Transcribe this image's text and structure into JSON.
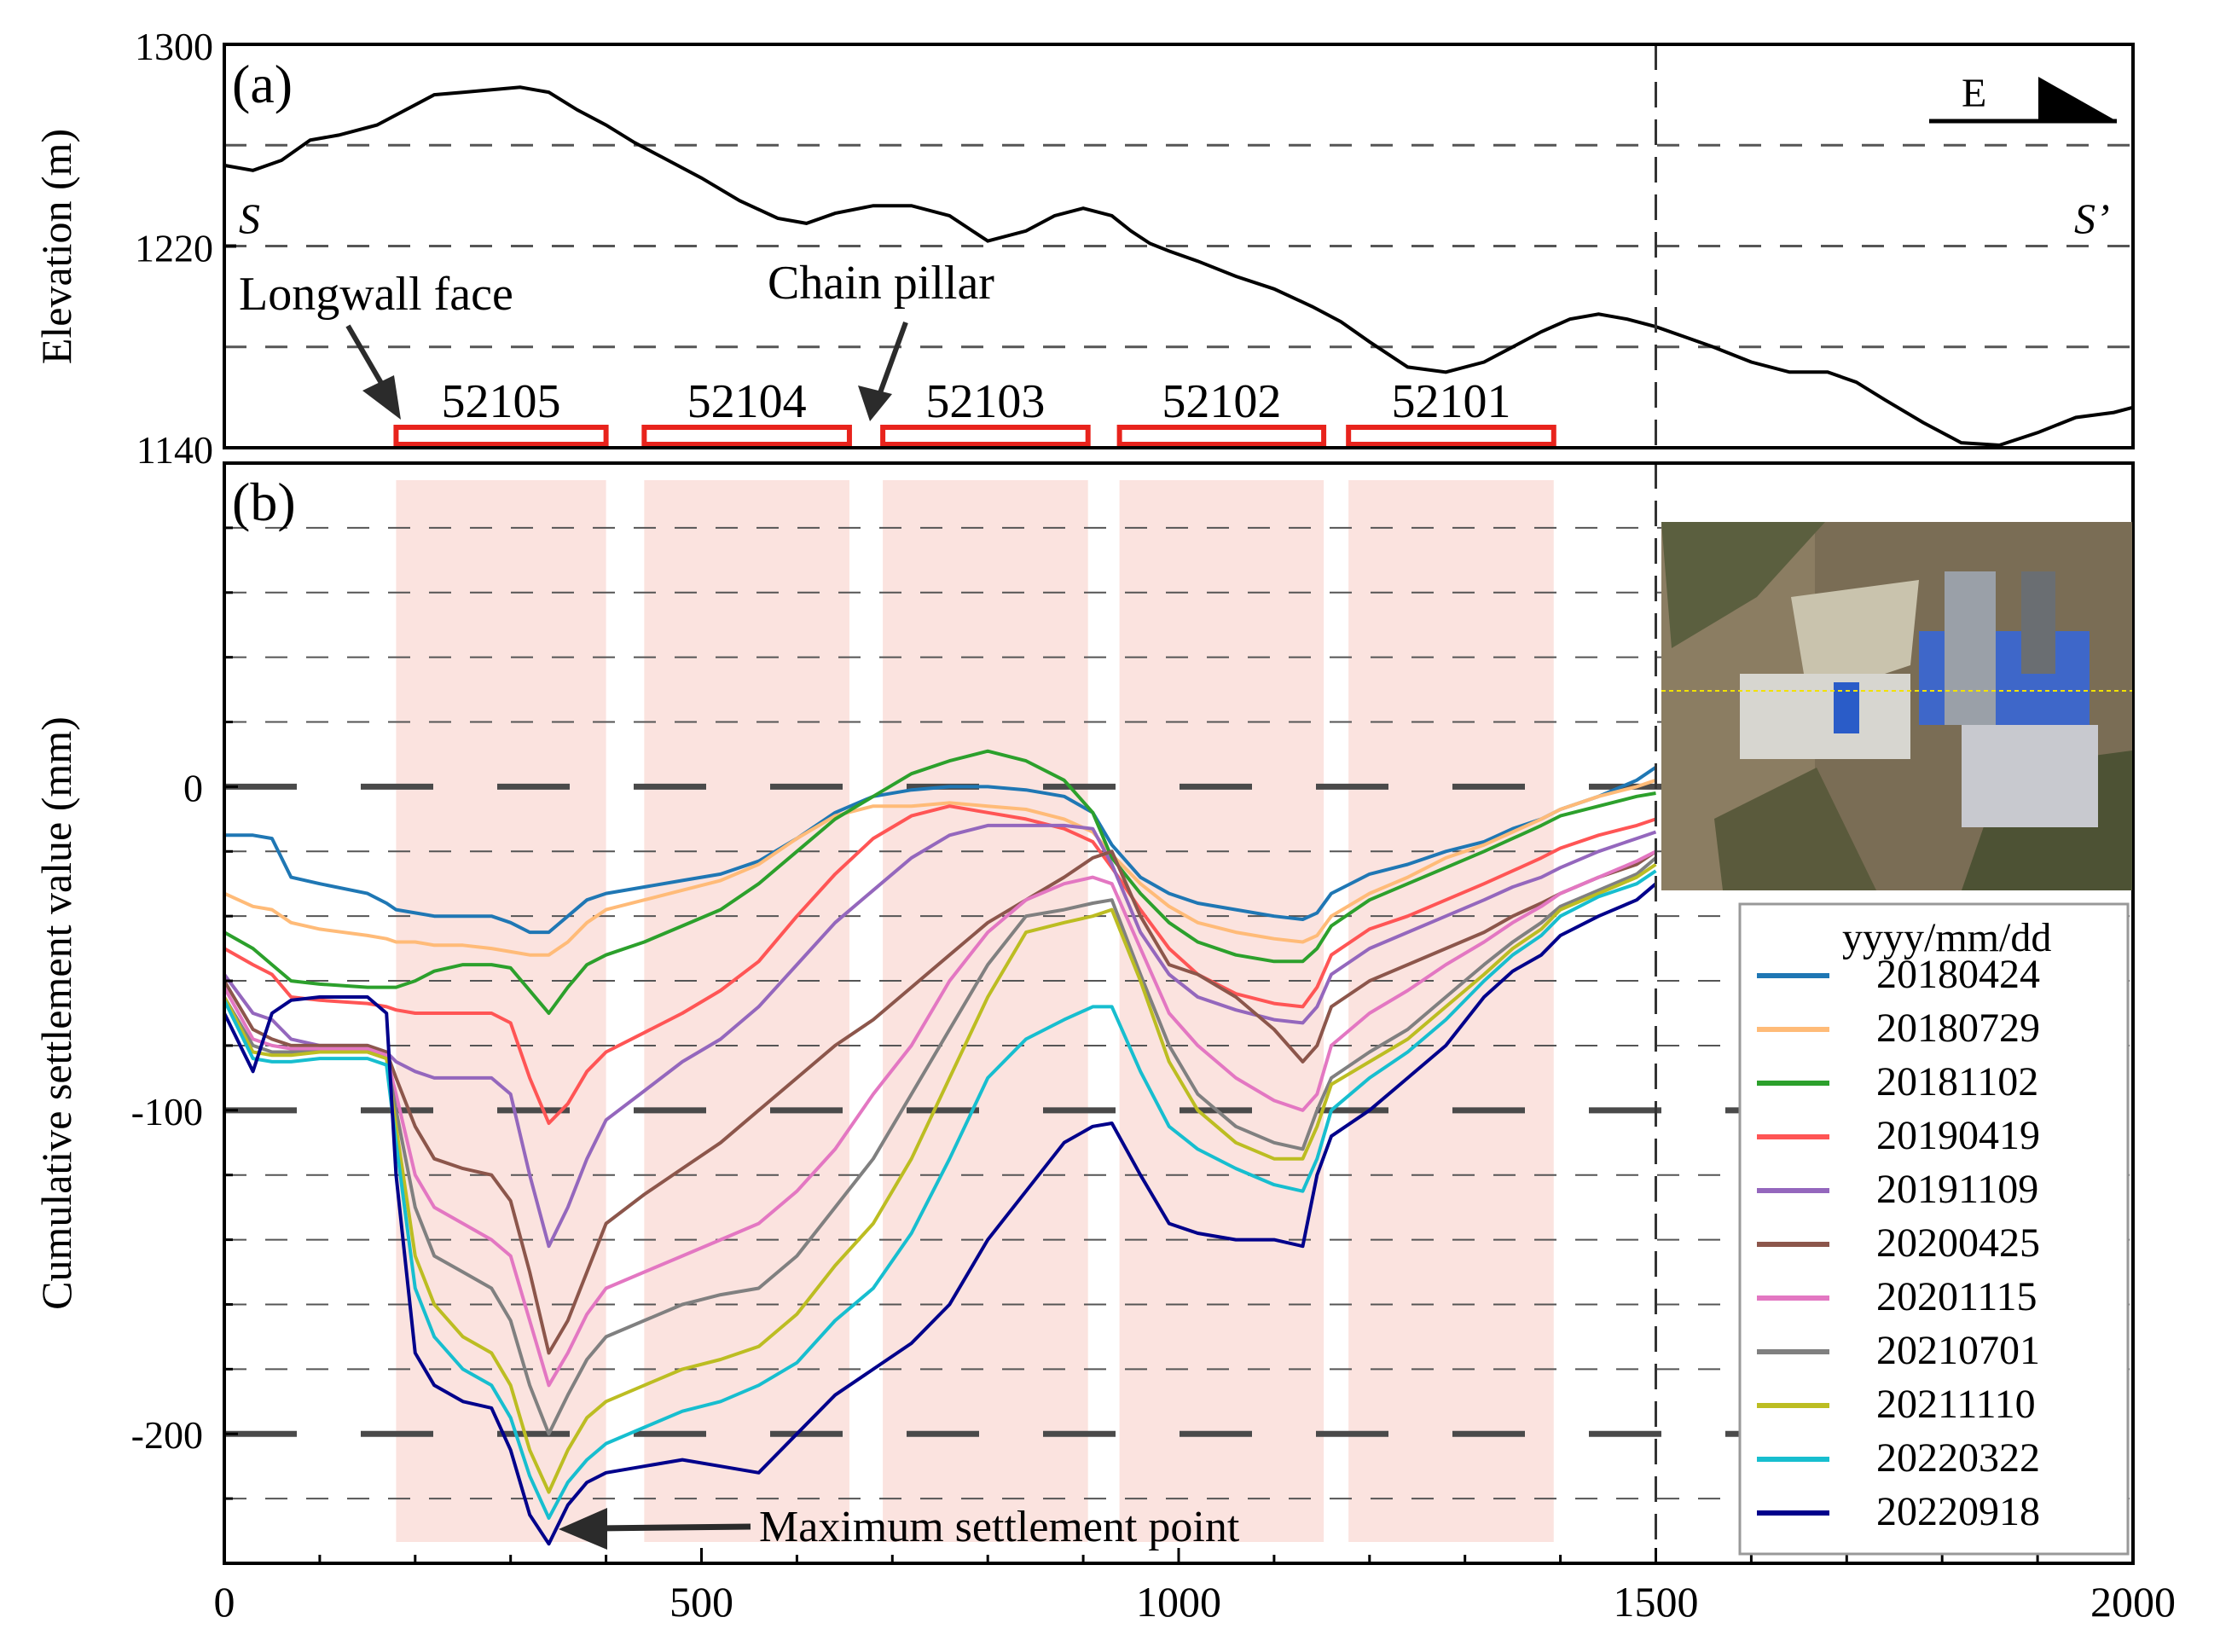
{
  "colors": {
    "frame": "#000000",
    "grid_minor": "#555555",
    "grid_major": "#4a4a4a",
    "panel_fill": "#fbe3df",
    "panel_rect": "#e8231c",
    "elevation_line": "#000000",
    "arrow": "#2b2b2b"
  },
  "inset_icon": "satellite-image-icon",
  "chart_data": [
    {
      "id": "a",
      "type": "line",
      "panel_label": "(a)",
      "ylabel": "Elevation (m)",
      "ylim": [
        1140,
        1300
      ],
      "yticks": [
        1140,
        1220,
        1300
      ],
      "xlim": [
        0,
        2000
      ],
      "grid_y": [
        1180,
        1220,
        1260
      ],
      "profile_start_label": "S",
      "profile_end_label": "S’",
      "direction_label": "E",
      "divider_x": 1500,
      "series": [
        {
          "name": "elevation",
          "x": [
            0,
            30,
            60,
            90,
            120,
            160,
            190,
            220,
            250,
            280,
            310,
            340,
            370,
            400,
            430,
            460,
            500,
            540,
            580,
            610,
            640,
            680,
            720,
            760,
            800,
            840,
            870,
            900,
            930,
            950,
            970,
            990,
            1020,
            1060,
            1100,
            1140,
            1170,
            1200,
            1240,
            1280,
            1320,
            1350,
            1380,
            1410,
            1440,
            1470,
            1500,
            1530,
            1560,
            1600,
            1640,
            1680,
            1710,
            1740,
            1780,
            1820,
            1860,
            1900,
            1940,
            1980,
            2000
          ],
          "y": [
            1252,
            1250,
            1254,
            1262,
            1264,
            1268,
            1274,
            1280,
            1281,
            1282,
            1283,
            1281,
            1274,
            1268,
            1261,
            1255,
            1247,
            1238,
            1231,
            1229,
            1233,
            1236,
            1236,
            1232,
            1222,
            1226,
            1232,
            1235,
            1232,
            1226,
            1221,
            1218,
            1214,
            1208,
            1203,
            1196,
            1190,
            1182,
            1172,
            1170,
            1174,
            1180,
            1186,
            1191,
            1193,
            1191,
            1188,
            1184,
            1180,
            1174,
            1170,
            1170,
            1166,
            1159,
            1150,
            1142,
            1141,
            1146,
            1152,
            1154,
            1156
          ]
        }
      ],
      "annotations": [
        {
          "text": "Longwall face"
        },
        {
          "text": "Chain pillar"
        }
      ],
      "panels": [
        {
          "label": "52105",
          "x_start": 180,
          "x_end": 400
        },
        {
          "label": "52104",
          "x_start": 440,
          "x_end": 655
        },
        {
          "label": "52103",
          "x_start": 690,
          "x_end": 905
        },
        {
          "label": "52102",
          "x_start": 938,
          "x_end": 1152
        },
        {
          "label": "52101",
          "x_start": 1178,
          "x_end": 1393
        }
      ]
    },
    {
      "id": "b",
      "type": "line",
      "panel_label": "(b)",
      "xlabel": "",
      "ylabel": "Cumulative settlement value  (mm)",
      "ylim": [
        -240,
        100
      ],
      "yticks": [
        -200,
        -100,
        0
      ],
      "xlim": [
        0,
        2000
      ],
      "xticks": [
        0,
        500,
        1000,
        1500,
        2000
      ],
      "minor_grid_step": 20,
      "major_grid": [
        -200,
        -100,
        0
      ],
      "legend_title": "yyyy/mm/dd",
      "legend_position": "bottom-right",
      "annotation": "Maximum settlement point",
      "x": [
        0,
        30,
        50,
        70,
        100,
        150,
        170,
        180,
        200,
        220,
        250,
        280,
        300,
        320,
        340,
        360,
        380,
        400,
        440,
        480,
        520,
        560,
        600,
        640,
        680,
        720,
        760,
        800,
        840,
        880,
        910,
        930,
        960,
        990,
        1020,
        1060,
        1100,
        1130,
        1145,
        1160,
        1200,
        1240,
        1280,
        1320,
        1350,
        1380,
        1400,
        1440,
        1480,
        1500
      ],
      "series": [
        {
          "name": "20180424",
          "color": "#1f77b4",
          "values": [
            -15,
            -15,
            -16,
            -28,
            -30,
            -33,
            -36,
            -38,
            -39,
            -40,
            -40,
            -40,
            -42,
            -45,
            -45,
            -40,
            -35,
            -33,
            -31,
            -29,
            -27,
            -23,
            -16,
            -8,
            -3,
            -1,
            0,
            0,
            -1,
            -3,
            -8,
            -18,
            -28,
            -33,
            -36,
            -38,
            -40,
            -41,
            -39,
            -33,
            -27,
            -24,
            -20,
            -17,
            -13,
            -10,
            -7,
            -3,
            2,
            6
          ]
        },
        {
          "name": "20180729",
          "color": "#ffbb78",
          "values": [
            -33,
            -37,
            -38,
            -42,
            -44,
            -46,
            -47,
            -48,
            -48,
            -49,
            -49,
            -50,
            -51,
            -52,
            -52,
            -48,
            -42,
            -38,
            -35,
            -32,
            -29,
            -24,
            -16,
            -9,
            -6,
            -6,
            -5,
            -6,
            -7,
            -10,
            -14,
            -21,
            -30,
            -37,
            -42,
            -45,
            -47,
            -48,
            -46,
            -40,
            -33,
            -28,
            -22,
            -18,
            -14,
            -10,
            -7,
            -3,
            0,
            2
          ]
        },
        {
          "name": "20181102",
          "color": "#2ca02c",
          "values": [
            -45,
            -50,
            -55,
            -60,
            -61,
            -62,
            -62,
            -62,
            -60,
            -57,
            -55,
            -55,
            -56,
            -63,
            -70,
            -62,
            -55,
            -52,
            -48,
            -43,
            -38,
            -30,
            -20,
            -10,
            -3,
            4,
            8,
            11,
            8,
            2,
            -8,
            -22,
            -33,
            -42,
            -48,
            -52,
            -54,
            -54,
            -50,
            -43,
            -35,
            -30,
            -25,
            -20,
            -16,
            -12,
            -9,
            -6,
            -3,
            -2
          ]
        },
        {
          "name": "20190419",
          "color": "#ff5555",
          "values": [
            -50,
            -55,
            -58,
            -65,
            -66,
            -67,
            -68,
            -69,
            -70,
            -70,
            -70,
            -70,
            -73,
            -90,
            -104,
            -98,
            -88,
            -82,
            -76,
            -70,
            -63,
            -54,
            -40,
            -27,
            -16,
            -9,
            -6,
            -8,
            -10,
            -13,
            -17,
            -25,
            -38,
            -50,
            -58,
            -64,
            -67,
            -68,
            -62,
            -52,
            -44,
            -40,
            -35,
            -30,
            -26,
            -22,
            -19,
            -15,
            -12,
            -10
          ]
        },
        {
          "name": "20191109",
          "color": "#9467bd",
          "values": [
            -58,
            -70,
            -72,
            -78,
            -80,
            -80,
            -82,
            -85,
            -88,
            -90,
            -90,
            -90,
            -95,
            -120,
            -142,
            -130,
            -115,
            -103,
            -94,
            -85,
            -78,
            -68,
            -55,
            -42,
            -32,
            -22,
            -15,
            -12,
            -12,
            -12,
            -13,
            -24,
            -45,
            -58,
            -65,
            -69,
            -72,
            -73,
            -68,
            -58,
            -50,
            -45,
            -40,
            -35,
            -31,
            -28,
            -25,
            -20,
            -16,
            -14
          ]
        },
        {
          "name": "20200425",
          "color": "#8c564b",
          "values": [
            -60,
            -75,
            -78,
            -80,
            -80,
            -80,
            -82,
            -90,
            -105,
            -115,
            -118,
            -120,
            -128,
            -150,
            -175,
            -165,
            -150,
            -135,
            -126,
            -118,
            -110,
            -100,
            -90,
            -80,
            -72,
            -62,
            -52,
            -42,
            -35,
            -28,
            -22,
            -20,
            -40,
            -55,
            -58,
            -65,
            -75,
            -85,
            -80,
            -68,
            -60,
            -55,
            -50,
            -45,
            -40,
            -36,
            -33,
            -28,
            -24,
            -20
          ]
        },
        {
          "name": "20201115",
          "color": "#e377c2",
          "values": [
            -62,
            -78,
            -80,
            -81,
            -81,
            -81,
            -83,
            -95,
            -120,
            -130,
            -135,
            -140,
            -145,
            -165,
            -185,
            -175,
            -163,
            -155,
            -150,
            -145,
            -140,
            -135,
            -125,
            -112,
            -95,
            -80,
            -60,
            -45,
            -35,
            -30,
            -28,
            -30,
            -50,
            -70,
            -80,
            -90,
            -97,
            -100,
            -95,
            -80,
            -70,
            -63,
            -55,
            -48,
            -42,
            -37,
            -33,
            -28,
            -23,
            -20
          ]
        },
        {
          "name": "20210701",
          "color": "#808080",
          "values": [
            -65,
            -80,
            -82,
            -82,
            -82,
            -82,
            -84,
            -100,
            -130,
            -145,
            -150,
            -155,
            -165,
            -185,
            -200,
            -188,
            -177,
            -170,
            -165,
            -160,
            -157,
            -155,
            -145,
            -130,
            -115,
            -95,
            -75,
            -55,
            -40,
            -38,
            -36,
            -35,
            -58,
            -80,
            -95,
            -105,
            -110,
            -112,
            -100,
            -90,
            -82,
            -75,
            -65,
            -55,
            -48,
            -42,
            -37,
            -32,
            -27,
            -22
          ]
        },
        {
          "name": "20211110",
          "color": "#bcbd22",
          "values": [
            -65,
            -82,
            -83,
            -83,
            -82,
            -82,
            -84,
            -105,
            -145,
            -160,
            -170,
            -175,
            -185,
            -205,
            -218,
            -205,
            -195,
            -190,
            -185,
            -180,
            -177,
            -173,
            -163,
            -148,
            -135,
            -115,
            -90,
            -65,
            -45,
            -42,
            -40,
            -38,
            -60,
            -85,
            -100,
            -110,
            -115,
            -115,
            -105,
            -92,
            -85,
            -78,
            -68,
            -58,
            -50,
            -44,
            -38,
            -33,
            -28,
            -24
          ]
        },
        {
          "name": "20220322",
          "color": "#17becf",
          "values": [
            -66,
            -84,
            -85,
            -85,
            -84,
            -84,
            -86,
            -110,
            -155,
            -170,
            -180,
            -185,
            -195,
            -213,
            -226,
            -215,
            -208,
            -203,
            -198,
            -193,
            -190,
            -185,
            -178,
            -165,
            -155,
            -138,
            -115,
            -90,
            -78,
            -72,
            -68,
            -68,
            -88,
            -105,
            -112,
            -118,
            -123,
            -125,
            -115,
            -100,
            -90,
            -82,
            -72,
            -60,
            -52,
            -46,
            -40,
            -34,
            -30,
            -26
          ]
        },
        {
          "name": "20220918",
          "color": "#00008b",
          "values": [
            -70,
            -88,
            -70,
            -66,
            -65,
            -65,
            -70,
            -120,
            -175,
            -185,
            -190,
            -192,
            -205,
            -225,
            -234,
            -222,
            -215,
            -212,
            -210,
            -208,
            -210,
            -212,
            -200,
            -188,
            -180,
            -172,
            -160,
            -140,
            -125,
            -110,
            -105,
            -104,
            -120,
            -135,
            -138,
            -140,
            -140,
            -142,
            -120,
            -108,
            -100,
            -90,
            -80,
            -65,
            -57,
            -52,
            -46,
            -40,
            -35,
            -30
          ]
        }
      ]
    }
  ]
}
